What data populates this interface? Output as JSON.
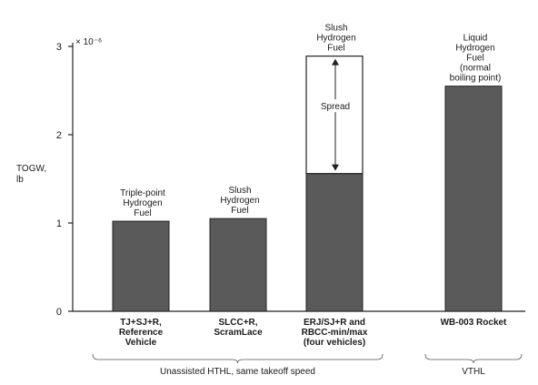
{
  "chart_data": {
    "type": "bar",
    "ylabel": [
      "TOGW,",
      "lb"
    ],
    "y_multiplier": "× 10⁻⁶",
    "ylim": [
      0,
      3
    ],
    "yticks": [
      "0",
      "1",
      "2",
      "3"
    ],
    "categories": [
      [
        "TJ+SJ+R,",
        "Reference",
        "Vehicle"
      ],
      [
        "SLCC+R,",
        "ScramLace"
      ],
      [
        "ERJ/SJ+R and",
        "RBCC-min/max",
        "(four vehicles)"
      ],
      [
        "WB-003 Rocket"
      ]
    ],
    "values": [
      1.02,
      1.05,
      1.56,
      2.55
    ],
    "range_max": [
      null,
      null,
      2.89,
      null
    ],
    "bar_labels": [
      [
        "Triple-point",
        "Hydrogen",
        "Fuel"
      ],
      [
        "Slush",
        "Hydrogen",
        "Fuel"
      ],
      [
        "Slush",
        "Hydrogen",
        "Fuel"
      ],
      [
        "Liquid",
        "Hydrogen",
        "Fuel",
        "(normal",
        "boiling point)"
      ]
    ],
    "spread_label": "Spread",
    "groups": [
      {
        "label": "Unassisted HTHL, same takeoff speed",
        "bars": [
          0,
          1,
          2
        ]
      },
      {
        "label": "VTHL",
        "bars": [
          3
        ]
      }
    ],
    "bar_color": "#5a5a5a"
  }
}
